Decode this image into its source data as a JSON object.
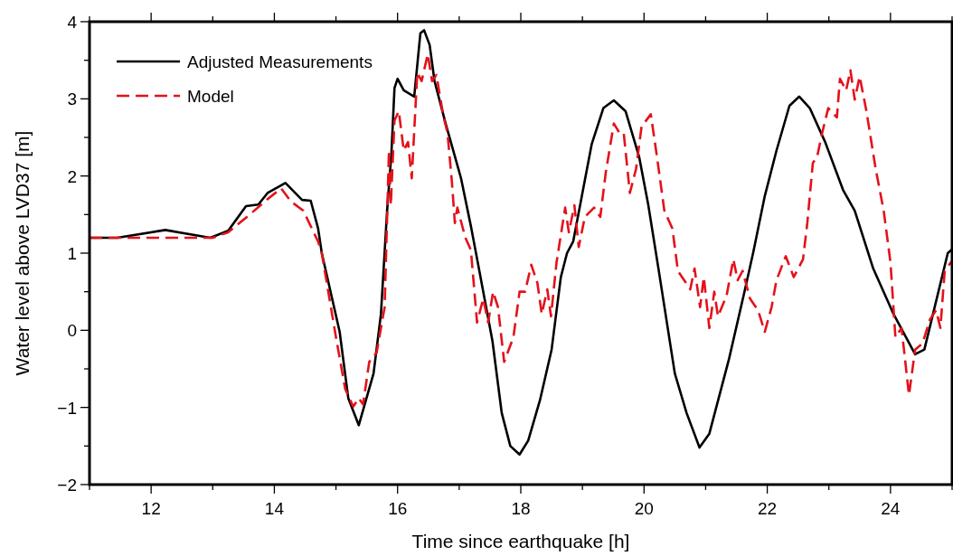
{
  "chart_data": {
    "type": "line",
    "xlabel": "Time since earthquake [h]",
    "ylabel": "Water level above LVD37 [m]",
    "xlim": [
      11,
      25
    ],
    "ylim": [
      -2,
      4
    ],
    "xticks": [
      {
        "value": 11,
        "label": null
      },
      12,
      {
        "value": 13,
        "label": null
      },
      14,
      {
        "value": 15,
        "label": null
      },
      16,
      {
        "value": 17,
        "label": null
      },
      18,
      {
        "value": 19,
        "label": null
      },
      20,
      {
        "value": 21,
        "label": null
      },
      22,
      {
        "value": 23,
        "label": null
      },
      24,
      {
        "value": 25,
        "label": null
      }
    ],
    "yticks": [
      {
        "value": -2,
        "label": "−2"
      },
      {
        "value": -1.5,
        "label": null
      },
      {
        "value": -1,
        "label": "−1"
      },
      {
        "value": -0.5,
        "label": null
      },
      0,
      {
        "value": 0.5,
        "label": null
      },
      1,
      {
        "value": 1.5,
        "label": null
      },
      2,
      {
        "value": 2.5,
        "label": null
      },
      3,
      {
        "value": 3.5,
        "label": null
      },
      4
    ],
    "legend": "top left",
    "series": [
      {
        "name": "Adjusted Measurements",
        "color": "#000000",
        "line_style": "solid",
        "x": [
          11,
          11.45,
          12.23,
          12.96,
          13.25,
          13.54,
          13.74,
          13.89,
          14.18,
          14.45,
          14.59,
          14.71,
          14.77,
          15.06,
          15.2,
          15.37,
          15.61,
          15.73,
          15.83,
          15.9,
          15.95,
          16.0,
          16.1,
          16.27,
          16.37,
          16.43,
          16.52,
          16.6,
          16.78,
          17.03,
          17.19,
          17.32,
          17.54,
          17.69,
          17.83,
          17.98,
          18.12,
          18.31,
          18.5,
          18.65,
          18.75,
          18.85,
          19.0,
          19.15,
          19.34,
          19.51,
          19.7,
          19.92,
          20.07,
          20.24,
          20.5,
          20.69,
          20.9,
          21.06,
          21.38,
          21.63,
          21.77,
          21.96,
          22.15,
          22.36,
          22.52,
          22.69,
          22.94,
          23.23,
          23.42,
          23.72,
          24.05,
          24.4,
          24.55,
          24.93,
          25
        ],
        "values": [
          1.2,
          1.2,
          1.3,
          1.2,
          1.29,
          1.61,
          1.63,
          1.78,
          1.91,
          1.69,
          1.68,
          1.32,
          1.0,
          -0.02,
          -0.88,
          -1.23,
          -0.56,
          0.21,
          1.55,
          2.29,
          3.14,
          3.26,
          3.11,
          3.03,
          3.85,
          3.89,
          3.7,
          3.23,
          2.68,
          1.97,
          1.35,
          0.8,
          -0.14,
          -1.07,
          -1.5,
          -1.61,
          -1.43,
          -0.91,
          -0.25,
          0.69,
          1.0,
          1.15,
          1.78,
          2.41,
          2.88,
          2.98,
          2.84,
          2.25,
          1.62,
          0.77,
          -0.56,
          -1.07,
          -1.52,
          -1.34,
          -0.37,
          0.5,
          1.0,
          1.74,
          2.33,
          2.91,
          3.03,
          2.88,
          2.44,
          1.82,
          1.55,
          0.8,
          0.21,
          -0.31,
          -0.25,
          1.0,
          1.05
        ]
      },
      {
        "name": "Model",
        "color": "#e3121b",
        "line_style": "dashed",
        "x": [
          11,
          13.0,
          13.25,
          13.6,
          13.89,
          14.11,
          14.27,
          14.47,
          14.71,
          14.77,
          15.0,
          15.15,
          15.28,
          15.37,
          15.44,
          15.54,
          15.66,
          15.79,
          15.86,
          15.89,
          15.95,
          16.02,
          16.1,
          16.17,
          16.23,
          16.32,
          16.39,
          16.49,
          16.56,
          16.63,
          16.74,
          16.81,
          16.88,
          16.93,
          16.97,
          17.1,
          17.19,
          17.29,
          17.39,
          17.47,
          17.55,
          17.63,
          17.73,
          17.88,
          17.98,
          18.07,
          18.17,
          18.27,
          18.34,
          18.43,
          18.49,
          18.58,
          18.72,
          18.78,
          18.87,
          18.94,
          19.04,
          19.19,
          19.29,
          19.38,
          19.51,
          19.6,
          19.67,
          19.77,
          19.87,
          19.96,
          20.11,
          20.21,
          20.33,
          20.46,
          20.55,
          20.75,
          20.82,
          20.91,
          20.97,
          21.06,
          21.14,
          21.2,
          21.34,
          21.45,
          21.52,
          21.6,
          21.72,
          21.85,
          21.96,
          22.07,
          22.15,
          22.3,
          22.43,
          22.58,
          22.65,
          22.74,
          22.81,
          22.88,
          22.99,
          23.13,
          23.18,
          23.28,
          23.35,
          23.42,
          23.5,
          23.61,
          23.76,
          23.89,
          24.0,
          24.08,
          24.18,
          24.3,
          24.4,
          24.52,
          24.64,
          24.74,
          24.81,
          24.88,
          25
        ],
        "values": [
          1.2,
          1.2,
          1.27,
          1.5,
          1.7,
          1.84,
          1.67,
          1.55,
          1.15,
          1.0,
          -0.09,
          -0.76,
          -0.99,
          -0.88,
          -0.96,
          -0.41,
          -0.29,
          0.3,
          2.33,
          1.62,
          2.72,
          2.84,
          2.33,
          2.44,
          1.97,
          3.34,
          3.23,
          3.58,
          3.23,
          3.31,
          2.79,
          2.56,
          1.94,
          1.39,
          1.59,
          1.2,
          1.04,
          0.1,
          0.41,
          0.1,
          0.5,
          0.3,
          -0.41,
          -0.09,
          0.5,
          0.5,
          0.85,
          0.61,
          0.21,
          0.53,
          0.18,
          0.88,
          1.59,
          1.27,
          1.62,
          1.08,
          1.47,
          1.59,
          1.47,
          2.05,
          2.68,
          2.56,
          2.56,
          1.78,
          2.09,
          2.64,
          2.8,
          2.25,
          1.55,
          1.32,
          0.77,
          0.53,
          0.8,
          0.3,
          0.69,
          0.03,
          0.5,
          0.18,
          0.45,
          0.92,
          0.65,
          0.77,
          0.41,
          0.26,
          -0.02,
          0.3,
          0.65,
          0.96,
          0.69,
          0.92,
          1.39,
          2.17,
          2.25,
          2.52,
          2.88,
          2.76,
          3.26,
          3.11,
          3.37,
          2.99,
          3.29,
          2.84,
          2.09,
          1.55,
          0.88,
          -0.09,
          0.03,
          -0.84,
          -0.25,
          -0.17,
          0.14,
          0.26,
          0.03,
          0.77,
          0.9
        ]
      }
    ]
  }
}
